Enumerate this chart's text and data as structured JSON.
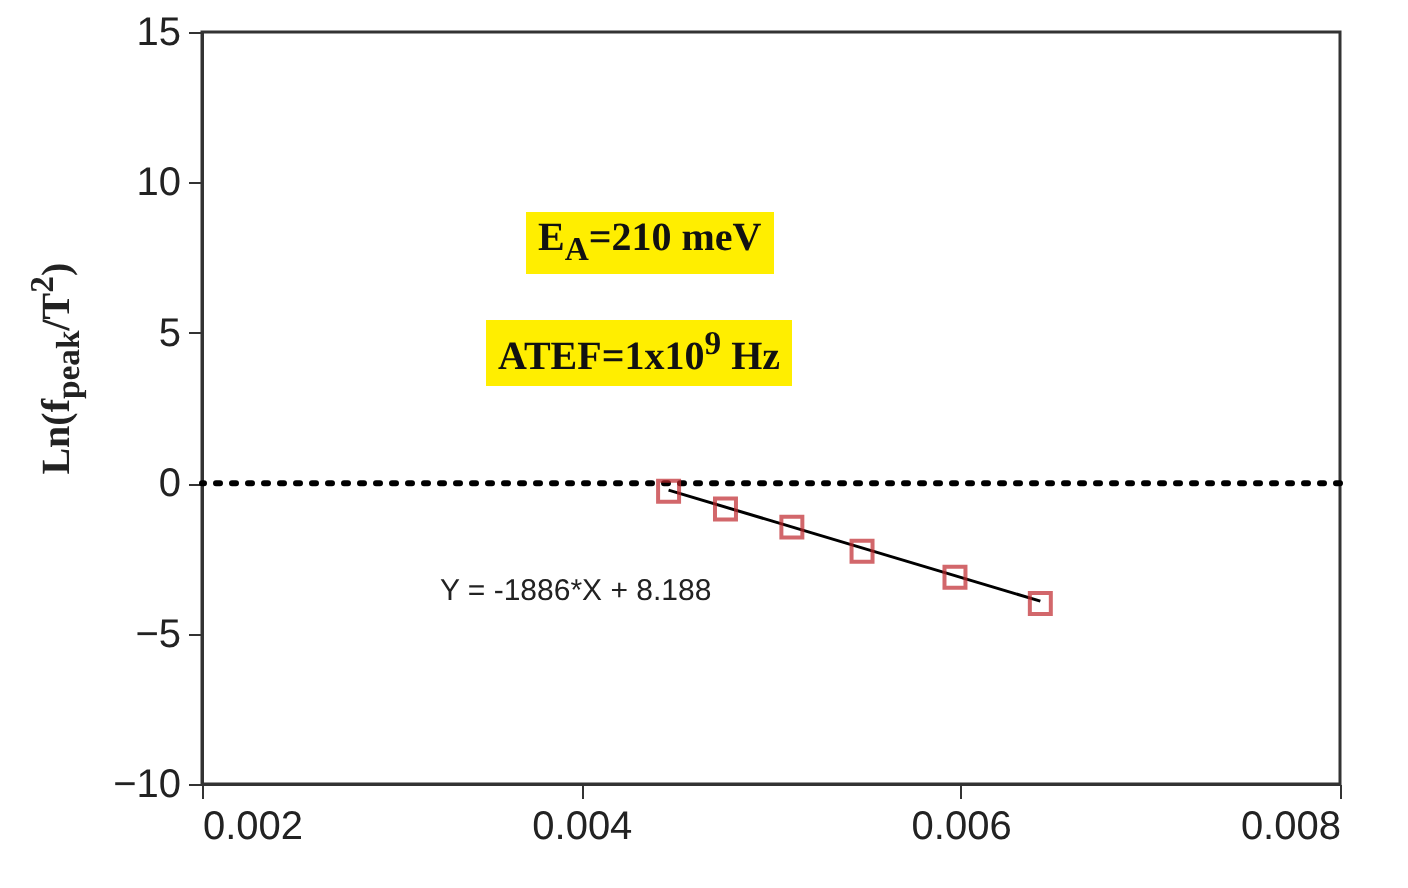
{
  "chart_data": {
    "type": "scatter",
    "ylabel": "Ln(f$_{peak}$/T$^{2}$)",
    "xlim": [
      0.002,
      0.008
    ],
    "xticks": [
      0.002,
      0.004,
      0.006,
      0.008
    ],
    "ylim": [
      -10,
      15
    ],
    "yticks": [
      -10,
      -5,
      0,
      5,
      10,
      15
    ],
    "grid": false,
    "series": [
      {
        "type": "line",
        "color": "#000000",
        "x": [
          0.00446,
          0.00642
        ],
        "values": [
          -0.23,
          -3.92
        ],
        "marker": "none",
        "line_style": "solid"
      },
      {
        "color": "#c0282d",
        "marker": "square",
        "x": [
          0.00446,
          0.00476,
          0.00511,
          0.00548,
          0.00597,
          0.00642
        ],
        "values": [
          -0.27,
          -0.86,
          -1.46,
          -2.26,
          -3.13,
          -4.0
        ]
      }
    ],
    "ref_lines": [
      {
        "axis": "y",
        "value": 0,
        "color": "#000000",
        "line_style": "dotted"
      }
    ],
    "annotations": [
      "E$_{A}$=210 meV",
      "ATEF=1x10$^{9}$ Hz",
      "Y = -1886*X + 8.188"
    ]
  }
}
